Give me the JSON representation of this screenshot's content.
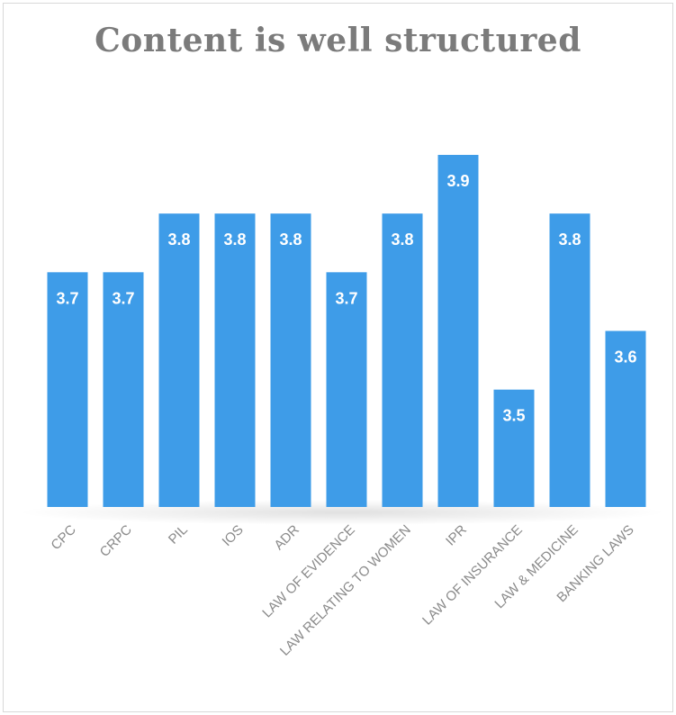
{
  "chart_data": {
    "type": "bar",
    "title": "Content is well structured",
    "categories": [
      "CPC",
      "CRPC",
      "PIL",
      "IOS",
      "ADR",
      "LAW OF EVIDENCE",
      "LAW RELATING TO WOMEN",
      "IPR",
      "LAW OF INSURANCE",
      "LAW & MEDICINE",
      "BANKING LAWS"
    ],
    "values": [
      3.7,
      3.7,
      3.8,
      3.8,
      3.8,
      3.7,
      3.8,
      3.9,
      3.5,
      3.8,
      3.6
    ],
    "value_labels": [
      "3.7",
      "3.7",
      "3.8",
      "3.8",
      "3.8",
      "3.7",
      "3.8",
      "3.9",
      "3.5",
      "3.8",
      "3.6"
    ],
    "ylim": [
      3.3,
      3.9
    ],
    "xlabel": "",
    "ylabel": "",
    "grid": false,
    "legend": false,
    "bar_color": "#3e9ce8",
    "label_color": "#ffffff",
    "tick_color": "#8a8a8a"
  }
}
